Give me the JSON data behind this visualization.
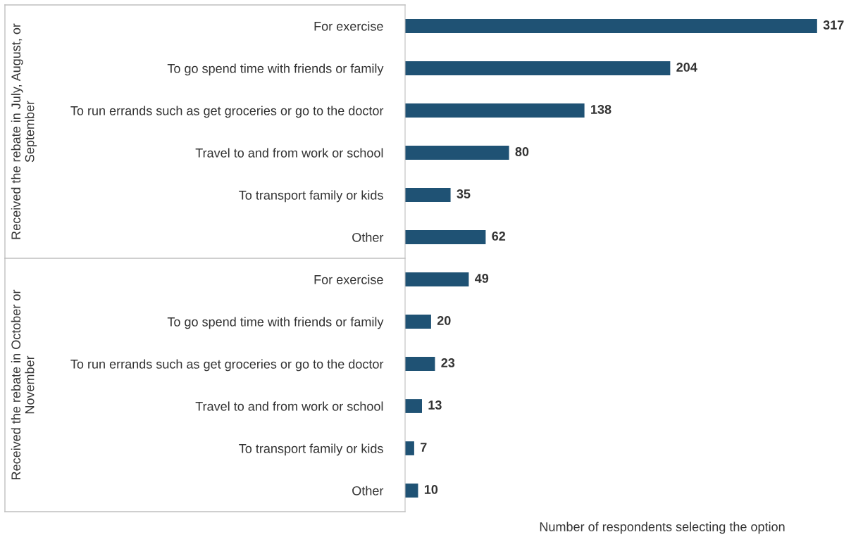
{
  "chart_data": {
    "type": "bar",
    "orientation": "horizontal",
    "categories": [
      "For exercise",
      "To go spend time with friends or family",
      "To run errands such as get groceries or go to the doctor",
      "Travel to and from work or school",
      "To transport family or kids",
      "Other",
      "For exercise",
      "To go spend time with friends or family",
      "To run errands such as get groceries or go to the doctor",
      "Travel to and from work or school",
      "To transport family or kids",
      "Other"
    ],
    "values": [
      317,
      204,
      138,
      80,
      35,
      62,
      49,
      20,
      23,
      13,
      7,
      10
    ],
    "color": "#1f5274",
    "data_labels": true,
    "xlabel": "Number of respondents selecting the option",
    "annotations": [
      "Received the rebate in July, August, or September",
      "Received the rebate in October or November"
    ],
    "tick_labels": "y",
    "grid": false,
    "legend": false
  }
}
